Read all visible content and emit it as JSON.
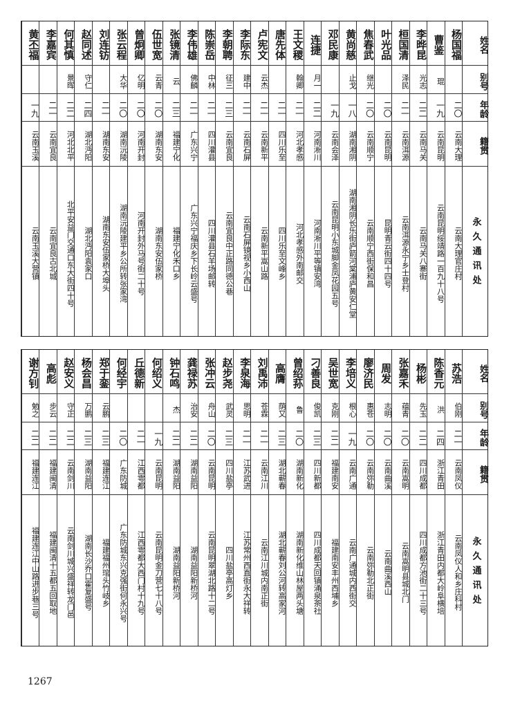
{
  "headers": {
    "name": "姓名",
    "alias": "别号",
    "age": "年龄",
    "origin": "籍贯",
    "address": "永久通讯处"
  },
  "top_rows": [
    {
      "name": "杨国福",
      "alias": "",
      "age": "二〇",
      "origin": "云南大理",
      "address": "云南大理官庄村"
    },
    {
      "name": "曹鉴",
      "alias": "琨",
      "age": "一九",
      "origin": "云南昆明",
      "address": "云南昆明绥靖路一百九十八号"
    },
    {
      "name": "李晔昆",
      "alias": "光志",
      "age": "二二",
      "origin": "云南马关",
      "address": "云南马关八寨街"
    },
    {
      "name": "桓国清",
      "alias": "泽民",
      "age": "二一",
      "origin": "云南洱源",
      "address": "云南洱源永宁乡士登村"
    },
    {
      "name": "叶光品",
      "alias": "",
      "age": "二〇",
      "origin": "云南昆明",
      "address": "昆明青云街四十四号"
    },
    {
      "name": "焦春武",
      "alias": "继光",
      "age": "二〇",
      "origin": "云南顺宁",
      "address": "云南顺宁西街保和昌"
    },
    {
      "name": "黄尚慈",
      "alias": "止戈",
      "age": "一八",
      "origin": "湖南湘阴",
      "address": "湖南湘阴长乐街庐箭河棠浦庐黄安仁堂"
    },
    {
      "name": "邓民康",
      "alias": "",
      "age": "一九",
      "origin": "云南会泽",
      "address": "云南昆明小东城脚金凤花园五号"
    },
    {
      "name": "连捷",
      "alias": "月一",
      "age": "二二",
      "origin": "河南淅川",
      "address": "河南淅川平等镇安湾"
    },
    {
      "name": "王文稷",
      "alias": "翰卿",
      "age": "二一",
      "origin": "河北孝感",
      "address": "河北孝感外南邮交"
    },
    {
      "name": "唐先体",
      "alias": "",
      "age": "二一",
      "origin": "四川乐至",
      "address": "四川乐至文峰乡"
    },
    {
      "name": "卢宪文",
      "alias": "云杰",
      "age": "二一",
      "origin": "云南新平",
      "address": "云南新平嵩山路"
    },
    {
      "name": "李际东",
      "alias": "建中",
      "age": "二一",
      "origin": "云南石屏",
      "address": "云南石屏镜视乡小西山"
    },
    {
      "name": "李朝聘",
      "alias": "征三",
      "age": "二三",
      "origin": "云南宜良",
      "address": "云南宜良中正路同德公巷"
    },
    {
      "name": "陈崇岳",
      "alias": "中林",
      "age": "二一",
      "origin": "四川灌县",
      "address": "四川灌县石羊场邮转"
    },
    {
      "name": "李伟雄",
      "alias": "佛麟",
      "age": "二一",
      "origin": "广东兴宁",
      "address": "广东兴宁福庆乡下长岭云盛号"
    },
    {
      "name": "张镜清",
      "alias": "云",
      "age": "二三",
      "origin": "福建宁化",
      "address": "福建宁化禾口乡"
    },
    {
      "name": "伍世宽",
      "alias": "云青",
      "age": "二〇",
      "origin": "湖南东安",
      "address": "湖南东安伍家桥"
    },
    {
      "name": "曾炯卿",
      "alias": "亿明",
      "age": "二〇",
      "origin": "河南开封",
      "address": "河南开封外马号街二十号"
    },
    {
      "name": "张云程",
      "alias": "大华",
      "age": "二〇",
      "origin": "湖南沅陵",
      "address": "湖南沅陵建平乡公所转张家湾"
    },
    {
      "name": "刘连钫",
      "alias": "",
      "age": "二一",
      "origin": "湖南东安",
      "address": "湖南东安伍家桥大埠头"
    },
    {
      "name": "赵同述",
      "alias": "守仁",
      "age": "二四",
      "origin": "湖北沔阳",
      "address": "湖北沔阳袁家口"
    },
    {
      "name": "何其慎",
      "alias": "景晖",
      "age": "二二",
      "origin": "河北北平",
      "address": "北平安益门交通口东大街四十号"
    },
    {
      "name": "李嘉宾",
      "alias": "",
      "age": "二一",
      "origin": "云南宜良",
      "address": "云南宜良古北城"
    },
    {
      "name": "黄丕福",
      "alias": "",
      "age": "一九",
      "origin": "云南玉溪",
      "address": "云南玉溪大营镇"
    }
  ],
  "bottom_rows": [
    {
      "name": "苏浩",
      "alias": "伯刚",
      "age": "二一",
      "origin": "云南凤仪",
      "address": "云南凤仪人和乡庄科村"
    },
    {
      "name": "陈香元",
      "alias": "洪",
      "age": "二四",
      "origin": "浙江青田",
      "address": "浙江青田内都大岭阜横培"
    },
    {
      "name": "杨彬",
      "alias": "先玉",
      "age": "二二",
      "origin": "四川成都",
      "address": "四川成都方池街二十三号"
    },
    {
      "name": "张嘉禾",
      "alias": "蕴青",
      "age": "二〇",
      "origin": "云南嵩明",
      "address": "云南嵩明县城北门"
    },
    {
      "name": "周发",
      "alias": "志明",
      "age": "二〇",
      "origin": "云南曲溪",
      "address": "云南曲溪西山"
    },
    {
      "name": "廖济民",
      "alias": "惠苍",
      "age": "二〇",
      "origin": "云南弥勒",
      "address": "云南弥勒北正街"
    },
    {
      "name": "李培义",
      "alias": "根心",
      "age": "一九",
      "origin": "云南广通",
      "address": "云南广通城内西街交"
    },
    {
      "name": "吴世宽",
      "alias": "克刚",
      "age": "二二",
      "origin": "福建南安",
      "address": "福建南安丰州西埔乡"
    },
    {
      "name": "刁善良",
      "alias": "俊凯",
      "age": "二三",
      "origin": "四川新都",
      "address": "四川成都天回镇涌泉茶社"
    },
    {
      "name": "曾绍荪",
      "alias": "鲁",
      "age": "二〇",
      "origin": "湖南新化",
      "address": "湖南新化维山林屋两头塘"
    },
    {
      "name": "高膺",
      "alias": "荫又",
      "age": "二三",
      "origin": "湖北蕲春",
      "address": "湖北蕲春刘公河转高家河"
    },
    {
      "name": "刘禹沛",
      "alias": "苍霖",
      "age": "二一",
      "origin": "云南江川",
      "address": "云南江川城内南正街"
    },
    {
      "name": "李泉海",
      "alias": "思明",
      "age": "二一",
      "origin": "江苏武进",
      "address": "江苏常州西直街永大祥转"
    },
    {
      "name": "赵步尧",
      "alias": "武灵",
      "age": "二三",
      "origin": "四川盐亭",
      "address": "四川盐亭高灯乡"
    },
    {
      "name": "张冲云",
      "alias": "舟山",
      "age": "二〇",
      "origin": "云南昆明",
      "address": "云南昆明翠湖北路十二号"
    },
    {
      "name": "龚禄苏",
      "alias": "治安",
      "age": "二二",
      "origin": "湖南益阳",
      "address": "湖南益阳新桥河"
    },
    {
      "name": "钟石鸣",
      "alias": "杰",
      "age": "二二",
      "origin": "湖南益阳",
      "address": "湖南益阳新桥河"
    },
    {
      "name": "何绍义",
      "alias": "",
      "age": "一九",
      "origin": "云南昆明",
      "address": "云南昆明金刀营七十八号"
    },
    {
      "name": "丘德新",
      "alias": "",
      "age": "二一",
      "origin": "江西雩都",
      "address": "江西雩都大西门村十九号"
    },
    {
      "name": "何经宇",
      "alias": "",
      "age": "二〇",
      "origin": "广东防城",
      "address": "广东防城东兴克强街何永兴号"
    },
    {
      "name": "郑于銮",
      "alias": "云鹏",
      "age": "二三",
      "origin": "福建连江",
      "address": "福建福州琯头竹岐乡"
    },
    {
      "name": "杨会昌",
      "alias": "万鹏",
      "age": "二三",
      "origin": "湖南益阳",
      "address": "湖南长沙乔口霍复盛号"
    },
    {
      "name": "赵安义",
      "alias": "守正",
      "age": "二二",
      "origin": "云南剑川",
      "address": "云南剑川城兴盛祥转龙门邑"
    },
    {
      "name": "高彪",
      "alias": "步云",
      "age": "二二",
      "origin": "福建闽清",
      "address": "福建闽清十五都五回取地"
    },
    {
      "name": "谢方钊",
      "alias": "勉之",
      "age": "二二",
      "origin": "福建连江",
      "address": "福建连江中山路进步巷三号"
    }
  ],
  "page_number": "1267"
}
